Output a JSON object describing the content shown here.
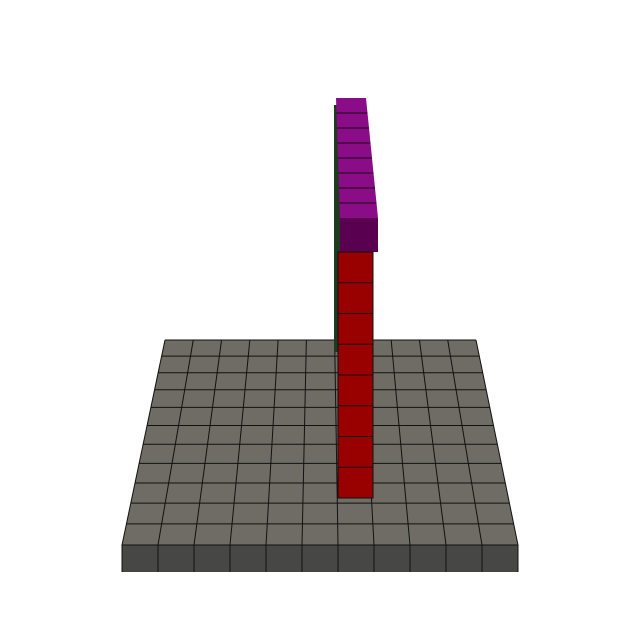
{
  "scene": {
    "description_type": "voxel-stack-3d-render",
    "colors": {
      "background": "#ffffff",
      "floor_top": "#6e6c65",
      "floor_front": "#474745",
      "grid_line": "#111111",
      "column_red": "#990000",
      "column_purple_top": "#8a0c86",
      "column_purple_dark": "#5a0050",
      "column_side_green": "#1f3a1f"
    },
    "floor": {
      "columns": 11,
      "rows": 11
    },
    "column": {
      "red_blocks": 8,
      "purple_blocks": 8
    }
  }
}
